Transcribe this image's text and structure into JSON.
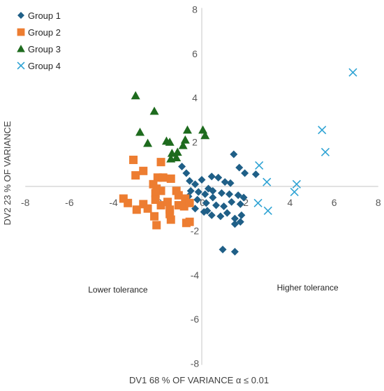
{
  "chart_data": {
    "type": "scatter",
    "xlabel": "DV1 68 % OF VARIANCE α ≤ 0.01",
    "ylabel": "DV2 23 % OF VARIANCE",
    "xlim": [
      -8,
      8
    ],
    "ylim": [
      -8,
      8
    ],
    "xticks": [
      -8,
      -6,
      -4,
      -2,
      0,
      2,
      4,
      6,
      8
    ],
    "yticks": [
      -8,
      -6,
      -4,
      -2,
      0,
      2,
      4,
      6,
      8
    ],
    "grid": false,
    "legend": "top-left",
    "annotations": [
      {
        "text": "Lower tolerance",
        "x": -3.8,
        "y": -4.8
      },
      {
        "text": "Higher tolerance",
        "x": 4.8,
        "y": -4.7
      }
    ],
    "series": [
      {
        "name": "Group 1",
        "marker": "diamond",
        "color": "#1f5f87",
        "points": [
          [
            1.45,
            1.45
          ],
          [
            -0.9,
            0.9
          ],
          [
            -0.7,
            0.6
          ],
          [
            -0.55,
            0.25
          ],
          [
            -0.3,
            0.1
          ],
          [
            0.0,
            0.3
          ],
          [
            0.3,
            -0.1
          ],
          [
            0.45,
            0.45
          ],
          [
            0.75,
            0.4
          ],
          [
            1.05,
            0.2
          ],
          [
            1.3,
            0.15
          ],
          [
            1.7,
            0.85
          ],
          [
            1.95,
            0.6
          ],
          [
            2.45,
            0.55
          ],
          [
            -0.5,
            -0.2
          ],
          [
            -0.15,
            -0.25
          ],
          [
            0.15,
            -0.35
          ],
          [
            0.5,
            -0.5
          ],
          [
            0.9,
            -0.3
          ],
          [
            1.25,
            -0.35
          ],
          [
            1.65,
            -0.4
          ],
          [
            1.9,
            -0.5
          ],
          [
            -0.2,
            -0.6
          ],
          [
            0.2,
            -0.75
          ],
          [
            0.65,
            -0.85
          ],
          [
            1.0,
            -0.9
          ],
          [
            1.35,
            -0.7
          ],
          [
            1.75,
            -0.8
          ],
          [
            -0.3,
            -1.0
          ],
          [
            0.1,
            -1.15
          ],
          [
            0.45,
            -1.3
          ],
          [
            0.85,
            -1.35
          ],
          [
            1.15,
            -1.2
          ],
          [
            1.5,
            -1.45
          ],
          [
            1.8,
            -1.3
          ],
          [
            0.95,
            -2.85
          ],
          [
            1.5,
            -2.95
          ],
          [
            1.5,
            -1.7
          ],
          [
            1.75,
            -1.6
          ],
          [
            0.5,
            -0.2
          ],
          [
            -0.6,
            -0.45
          ],
          [
            0.25,
            -1.1
          ]
        ]
      },
      {
        "name": "Group 2",
        "marker": "square",
        "color": "#ed7d31",
        "points": [
          [
            -3.1,
            1.2
          ],
          [
            -3.0,
            0.5
          ],
          [
            -2.65,
            0.7
          ],
          [
            -2.0,
            0.4
          ],
          [
            -1.85,
            1.1
          ],
          [
            -1.75,
            0.4
          ],
          [
            -1.4,
            0.35
          ],
          [
            -2.2,
            0.1
          ],
          [
            -2.05,
            -0.1
          ],
          [
            -1.85,
            -0.2
          ],
          [
            -2.1,
            -0.3
          ],
          [
            -3.55,
            -0.55
          ],
          [
            -3.35,
            -0.75
          ],
          [
            -2.95,
            -1.05
          ],
          [
            -2.65,
            -0.8
          ],
          [
            -2.45,
            -1.0
          ],
          [
            -2.1,
            -0.6
          ],
          [
            -1.85,
            -0.85
          ],
          [
            -2.15,
            -1.35
          ],
          [
            -1.55,
            -0.7
          ],
          [
            -1.45,
            -1.05
          ],
          [
            -1.05,
            -0.4
          ],
          [
            -0.75,
            -0.55
          ],
          [
            -1.05,
            -0.85
          ],
          [
            -1.4,
            -1.5
          ],
          [
            -0.8,
            -0.9
          ],
          [
            -0.55,
            -0.75
          ],
          [
            -0.7,
            -1.65
          ],
          [
            -0.55,
            -1.6
          ],
          [
            -2.05,
            -1.75
          ],
          [
            -1.45,
            -1.25
          ],
          [
            -1.15,
            -0.2
          ]
        ]
      },
      {
        "name": "Group 3",
        "marker": "triangle",
        "color": "#1e6b1e",
        "points": [
          [
            -3.0,
            4.1
          ],
          [
            -2.15,
            3.4
          ],
          [
            -2.8,
            2.45
          ],
          [
            -2.45,
            1.95
          ],
          [
            -1.6,
            2.05
          ],
          [
            -1.45,
            2.0
          ],
          [
            -1.35,
            1.5
          ],
          [
            -1.4,
            1.25
          ],
          [
            -1.15,
            1.3
          ],
          [
            -0.85,
            1.85
          ],
          [
            -0.65,
            2.55
          ],
          [
            -0.75,
            2.1
          ],
          [
            0.05,
            2.55
          ],
          [
            0.15,
            2.3
          ],
          [
            -1.1,
            1.55
          ]
        ]
      },
      {
        "name": "Group 4",
        "marker": "x",
        "color": "#2ea3d4",
        "points": [
          [
            2.6,
            0.95
          ],
          [
            2.95,
            0.2
          ],
          [
            2.55,
            -0.75
          ],
          [
            3.0,
            -1.1
          ],
          [
            4.3,
            0.1
          ],
          [
            4.2,
            -0.25
          ],
          [
            5.45,
            2.55
          ],
          [
            5.6,
            1.55
          ],
          [
            6.85,
            5.15
          ]
        ]
      }
    ]
  }
}
